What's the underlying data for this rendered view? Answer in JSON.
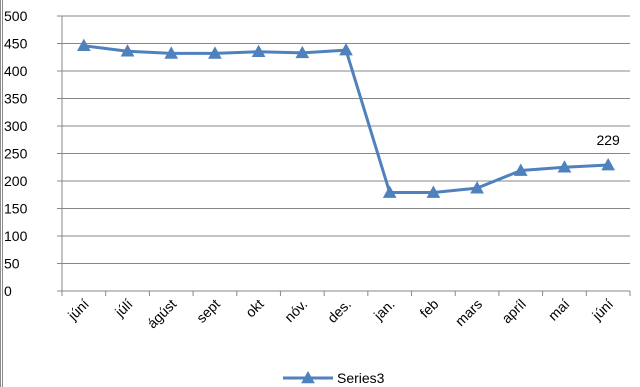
{
  "chart_data": {
    "type": "line",
    "categories": [
      "júní",
      "júlí",
      "ágúst",
      "sept",
      "okt",
      "nóv.",
      "des.",
      "jan.",
      "feb",
      "mars",
      "apríl",
      "maí",
      "júní"
    ],
    "series": [
      {
        "name": "Series3",
        "values": [
          446,
          436,
          432,
          432,
          435,
          433,
          438,
          179,
          179,
          187,
          219,
          225,
          229
        ],
        "color": "#4f81bd",
        "marker": "triangle"
      }
    ],
    "ylim": [
      0,
      500
    ],
    "yticks": [
      0,
      50,
      100,
      150,
      200,
      250,
      300,
      350,
      400,
      450,
      500
    ],
    "grid": true,
    "legend_position": "bottom",
    "data_labels": [
      {
        "index": 12,
        "text": "229"
      }
    ]
  }
}
